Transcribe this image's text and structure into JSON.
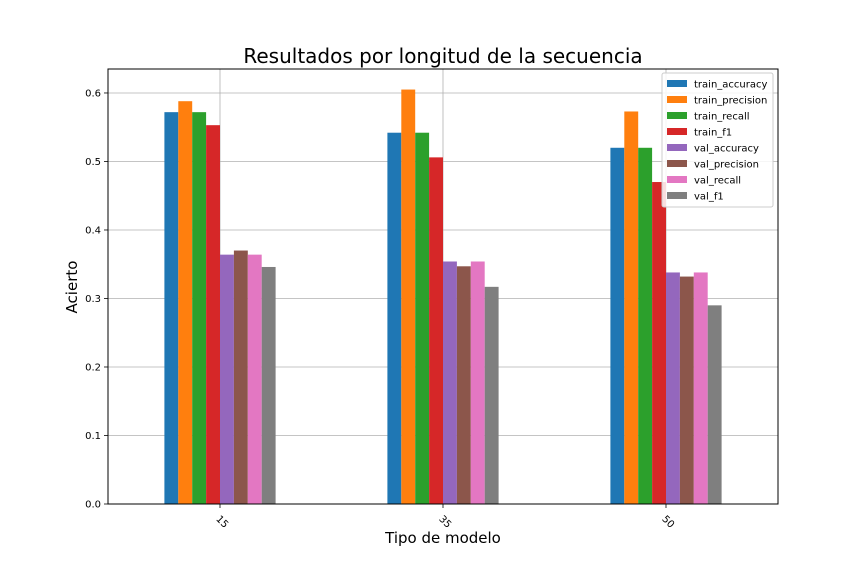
{
  "chart_data": {
    "type": "bar",
    "title": "Resultados por longitud de la secuencia",
    "xlabel": "Tipo de modelo",
    "ylabel": "Acierto",
    "categories": [
      "15",
      "35",
      "50"
    ],
    "ylim": [
      0,
      0.635
    ],
    "yticks": [
      "0.0",
      "0.1",
      "0.2",
      "0.3",
      "0.4",
      "0.5",
      "0.6"
    ],
    "grid": true,
    "legend_position": "top-right",
    "series": [
      {
        "name": "train_accuracy",
        "color": "#1f77b4",
        "values": [
          0.572,
          0.542,
          0.52
        ]
      },
      {
        "name": "train_precision",
        "color": "#ff7f0e",
        "values": [
          0.588,
          0.605,
          0.573
        ]
      },
      {
        "name": "train_recall",
        "color": "#2ca02c",
        "values": [
          0.572,
          0.542,
          0.52
        ]
      },
      {
        "name": "train_f1",
        "color": "#d62728",
        "values": [
          0.553,
          0.506,
          0.47
        ]
      },
      {
        "name": "val_accuracy",
        "color": "#9467bd",
        "values": [
          0.364,
          0.354,
          0.338
        ]
      },
      {
        "name": "val_precision",
        "color": "#8c564b",
        "values": [
          0.37,
          0.347,
          0.332
        ]
      },
      {
        "name": "val_recall",
        "color": "#e377c2",
        "values": [
          0.364,
          0.354,
          0.338
        ]
      },
      {
        "name": "val_f1",
        "color": "#7f7f7f",
        "values": [
          0.346,
          0.317,
          0.29
        ]
      }
    ]
  }
}
